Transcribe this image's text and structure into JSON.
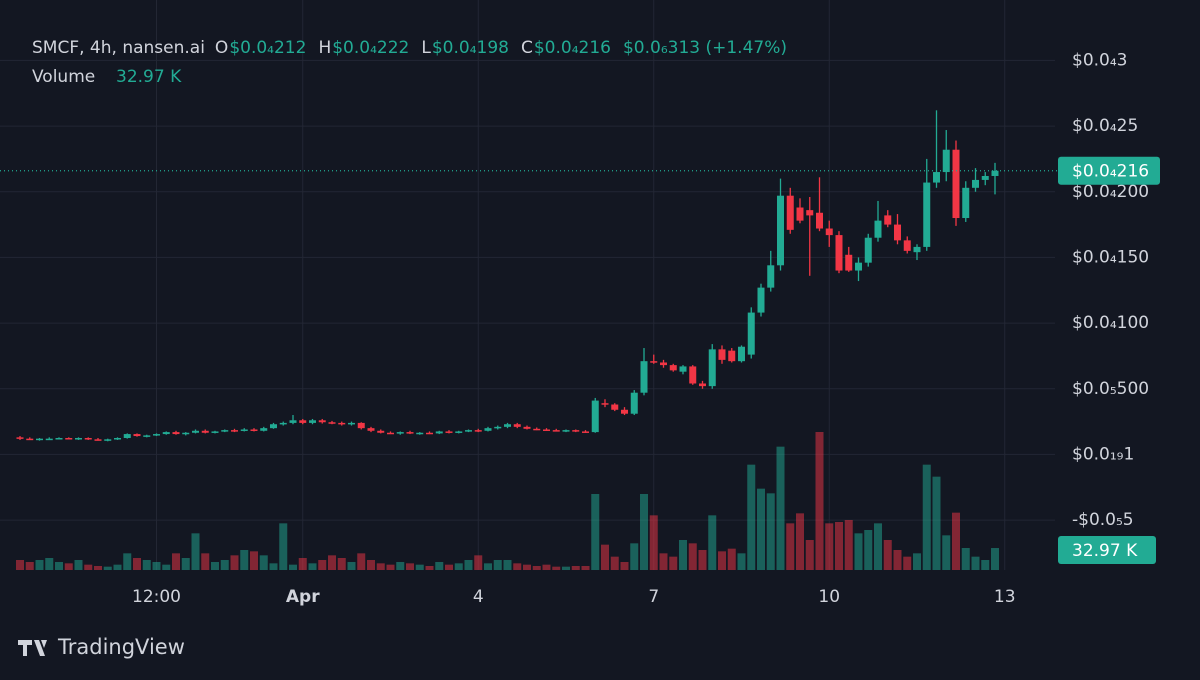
{
  "chart_data": {
    "type": "candlestick",
    "title": "SMCF, 4h, nansen.ai",
    "ohlc_legend": [
      {
        "key": "O",
        "value": 2.12e-05,
        "label": "$0.0₄212"
      },
      {
        "key": "H",
        "value": 2.22e-05,
        "label": "$0.0₄222"
      },
      {
        "key": "L",
        "value": 1.98e-05,
        "label": "$0.0₄198"
      },
      {
        "key": "C",
        "value": 2.16e-05,
        "label": "$0.0₄216"
      }
    ],
    "change": {
      "value": 3.13e-07,
      "label": "$0.0₆313 (+1.47%)"
    },
    "volume_legend": {
      "name": "Volume",
      "value": 32.97,
      "label": "32.97 K"
    },
    "last_price": {
      "value": 2.16e-05,
      "label": "$0.0₄216"
    },
    "up_color": "#22ab94",
    "down_color": "#f23645",
    "grid": true,
    "categories": [
      null,
      null,
      null,
      null,
      null,
      null,
      null,
      null,
      null,
      null,
      null,
      null,
      null,
      null,
      "12:00",
      null,
      null,
      null,
      null,
      null,
      null,
      null,
      null,
      null,
      null,
      null,
      null,
      null,
      null,
      "Apr",
      null,
      null,
      null,
      null,
      null,
      null,
      null,
      null,
      null,
      null,
      null,
      null,
      null,
      null,
      null,
      null,
      null,
      "4",
      null,
      null,
      null,
      null,
      null,
      null,
      null,
      null,
      null,
      null,
      null,
      null,
      null,
      null,
      null,
      null,
      null,
      "7",
      null,
      null,
      null,
      null,
      null,
      null,
      null,
      null,
      null,
      null,
      null,
      null,
      null,
      null,
      null,
      null,
      null,
      "10",
      null,
      null,
      null,
      null,
      null,
      null,
      null,
      null,
      null,
      null,
      null,
      null,
      null,
      null,
      null,
      null,
      null,
      "13"
    ],
    "open": [
      1.3e-06,
      1.2e-06,
      1.1e-06,
      1.2e-06,
      1.2e-06,
      1.25e-06,
      1.2e-06,
      1.25e-06,
      1.15e-06,
      1.1e-06,
      1.15e-06,
      1.25e-06,
      1.55e-06,
      1.4e-06,
      1.45e-06,
      1.55e-06,
      1.7e-06,
      1.55e-06,
      1.65e-06,
      1.8e-06,
      1.65e-06,
      1.75e-06,
      1.85e-06,
      1.8e-06,
      1.9e-06,
      1.8e-06,
      2e-06,
      2.3e-06,
      2.4e-06,
      2.6e-06,
      2.4e-06,
      2.6e-06,
      2.45e-06,
      2.4e-06,
      2.3e-06,
      2.4e-06,
      2e-06,
      1.8e-06,
      1.65e-06,
      1.6e-06,
      1.7e-06,
      1.6e-06,
      1.65e-06,
      1.6e-06,
      1.75e-06,
      1.7e-06,
      1.75e-06,
      1.85e-06,
      1.8e-06,
      2e-06,
      2.1e-06,
      2.3e-06,
      2.1e-06,
      1.95e-06,
      1.9e-06,
      1.85e-06,
      1.8e-06,
      1.85e-06,
      1.75e-06,
      1.7e-06,
      3.9e-06,
      3.8e-06,
      3.4e-06,
      3.1e-06,
      4.7e-06,
      7.1e-06,
      7e-06,
      6.8e-06,
      6.3e-06,
      6.7e-06,
      5.4e-06,
      5.2e-06,
      8e-06,
      7.9e-06,
      7.1e-06,
      7.6e-06,
      1.08e-05,
      1.27e-05,
      1.44e-05,
      1.97e-05,
      1.88e-05,
      1.86e-05,
      1.84e-05,
      1.72e-05,
      1.67e-05,
      1.52e-05,
      1.4e-05,
      1.46e-05,
      1.65e-05,
      1.82e-05,
      1.75e-05,
      1.63e-05,
      1.54e-05,
      1.58e-05,
      2.07e-05,
      2.15e-05,
      2.32e-05,
      1.8e-05,
      2.03e-05,
      2.09e-05,
      2.12e-05,
      null
    ],
    "high": [
      1.4e-06,
      1.3e-06,
      1.25e-06,
      1.3e-06,
      1.3e-06,
      1.3e-06,
      1.3e-06,
      1.3e-06,
      1.25e-06,
      1.2e-06,
      1.3e-06,
      1.6e-06,
      1.6e-06,
      1.5e-06,
      1.6e-06,
      1.75e-06,
      1.8e-06,
      1.7e-06,
      1.9e-06,
      1.9e-06,
      1.8e-06,
      1.9e-06,
      1.95e-06,
      2e-06,
      2e-06,
      2.1e-06,
      2.4e-06,
      2.5e-06,
      3e-06,
      2.7e-06,
      2.7e-06,
      2.7e-06,
      2.55e-06,
      2.5e-06,
      2.5e-06,
      2.45e-06,
      2.1e-06,
      1.9e-06,
      1.75e-06,
      1.75e-06,
      1.8e-06,
      1.7e-06,
      1.75e-06,
      1.8e-06,
      1.85e-06,
      1.8e-06,
      1.9e-06,
      1.95e-06,
      2.1e-06,
      2.2e-06,
      2.4e-06,
      2.4e-06,
      2.2e-06,
      2.05e-06,
      2e-06,
      1.95e-06,
      1.9e-06,
      1.9e-06,
      1.85e-06,
      4.3e-06,
      4.2e-06,
      3.9e-06,
      3.6e-06,
      4.9e-06,
      8.1e-06,
      7.6e-06,
      7.2e-06,
      6.9e-06,
      6.8e-06,
      6.8e-06,
      5.6e-06,
      8.4e-06,
      8.3e-06,
      8.1e-06,
      8.3e-06,
      1.12e-05,
      1.3e-05,
      1.55e-05,
      2.1e-05,
      2.03e-05,
      1.95e-05,
      1.96e-05,
      2.11e-05,
      1.78e-05,
      1.7e-05,
      1.58e-05,
      1.5e-05,
      1.68e-05,
      1.93e-05,
      1.86e-05,
      1.83e-05,
      1.66e-05,
      1.6e-05,
      2.25e-05,
      2.62e-05,
      2.47e-05,
      2.39e-05,
      2.08e-05,
      2.18e-05,
      2.15e-05,
      2.22e-05,
      null
    ],
    "low": [
      1.1e-06,
      1.1e-06,
      1.05e-06,
      1.1e-06,
      1.15e-06,
      1.15e-06,
      1.1e-06,
      1.1e-06,
      1.05e-06,
      1e-06,
      1.1e-06,
      1.2e-06,
      1.35e-06,
      1.3e-06,
      1.4e-06,
      1.5e-06,
      1.5e-06,
      1.45e-06,
      1.6e-06,
      1.6e-06,
      1.6e-06,
      1.7e-06,
      1.7e-06,
      1.75e-06,
      1.75e-06,
      1.75e-06,
      1.95e-06,
      2.2e-06,
      2.3e-06,
      2.3e-06,
      2.3e-06,
      2.35e-06,
      2.3e-06,
      2.2e-06,
      2.2e-06,
      1.9e-06,
      1.7e-06,
      1.6e-06,
      1.55e-06,
      1.5e-06,
      1.55e-06,
      1.5e-06,
      1.55e-06,
      1.55e-06,
      1.6e-06,
      1.6e-06,
      1.7e-06,
      1.7e-06,
      1.75e-06,
      1.9e-06,
      2e-06,
      2e-06,
      1.9e-06,
      1.85e-06,
      1.8e-06,
      1.75e-06,
      1.7e-06,
      1.7e-06,
      1.65e-06,
      1.65e-06,
      3.6e-06,
      3.3e-06,
      3e-06,
      3e-06,
      4.5e-06,
      6.9e-06,
      6.6e-06,
      6.3e-06,
      6.1e-06,
      5.3e-06,
      5e-06,
      5e-06,
      6.9e-06,
      7e-06,
      7e-06,
      7.3e-06,
      1.05e-05,
      1.24e-05,
      1.4e-05,
      1.68e-05,
      1.76e-05,
      1.36e-05,
      1.7e-05,
      1.58e-05,
      1.38e-05,
      1.39e-05,
      1.32e-05,
      1.43e-05,
      1.62e-05,
      1.73e-05,
      1.6e-05,
      1.53e-05,
      1.48e-05,
      1.55e-05,
      2.03e-05,
      2.08e-05,
      1.74e-05,
      1.77e-05,
      2e-05,
      2.05e-05,
      1.98e-05,
      null
    ],
    "close": [
      1.2e-06,
      1.1e-06,
      1.2e-06,
      1.2e-06,
      1.25e-06,
      1.2e-06,
      1.25e-06,
      1.15e-06,
      1.1e-06,
      1.15e-06,
      1.25e-06,
      1.55e-06,
      1.4e-06,
      1.45e-06,
      1.55e-06,
      1.7e-06,
      1.55e-06,
      1.65e-06,
      1.8e-06,
      1.65e-06,
      1.75e-06,
      1.85e-06,
      1.8e-06,
      1.9e-06,
      1.8e-06,
      2e-06,
      2.3e-06,
      2.4e-06,
      2.6e-06,
      2.4e-06,
      2.6e-06,
      2.45e-06,
      2.4e-06,
      2.3e-06,
      2.4e-06,
      2e-06,
      1.8e-06,
      1.65e-06,
      1.6e-06,
      1.7e-06,
      1.6e-06,
      1.65e-06,
      1.6e-06,
      1.75e-06,
      1.7e-06,
      1.75e-06,
      1.85e-06,
      1.8e-06,
      2e-06,
      2.1e-06,
      2.3e-06,
      2.1e-06,
      1.95e-06,
      1.9e-06,
      1.85e-06,
      1.8e-06,
      1.85e-06,
      1.75e-06,
      1.7e-06,
      4.1e-06,
      3.8e-06,
      3.4e-06,
      3.1e-06,
      4.7e-06,
      7.1e-06,
      7e-06,
      6.8e-06,
      6.4e-06,
      6.7e-06,
      5.4e-06,
      5.2e-06,
      8e-06,
      7.2e-06,
      7.1e-06,
      8.2e-06,
      1.08e-05,
      1.27e-05,
      1.44e-05,
      1.97e-05,
      1.71e-05,
      1.78e-05,
      1.82e-05,
      1.72e-05,
      1.67e-05,
      1.4e-05,
      1.4e-05,
      1.46e-05,
      1.65e-05,
      1.78e-05,
      1.75e-05,
      1.63e-05,
      1.55e-05,
      1.58e-05,
      2.07e-05,
      2.15e-05,
      2.32e-05,
      1.8e-05,
      2.03e-05,
      2.09e-05,
      2.12e-05,
      2.16e-05,
      null
    ],
    "volume": [
      15,
      12,
      15,
      18,
      12,
      10,
      15,
      8,
      6,
      5,
      8,
      25,
      18,
      15,
      12,
      8,
      25,
      18,
      55,
      25,
      12,
      15,
      22,
      30,
      28,
      22,
      10,
      70,
      8,
      18,
      10,
      15,
      22,
      18,
      12,
      25,
      15,
      10,
      8,
      12,
      10,
      8,
      6,
      12,
      8,
      10,
      15,
      22,
      10,
      15,
      15,
      10,
      8,
      6,
      8,
      5,
      5,
      6,
      6,
      114,
      38,
      20,
      12,
      40,
      114,
      82,
      25,
      20,
      45,
      40,
      30,
      82,
      28,
      32,
      25,
      158,
      122,
      115,
      185,
      70,
      85,
      45,
      207,
      70,
      72,
      75,
      55,
      60,
      70,
      45,
      30,
      20,
      25,
      158,
      140,
      52,
      86,
      33,
      20,
      15,
      32.97,
      null
    ],
    "volume_ylim": [
      0,
      207
    ],
    "ylim": [
      -8.8e-06,
      3.46e-05
    ],
    "yticks": [
      {
        "value": 3e-05,
        "label": "$0.0₄3"
      },
      {
        "value": 2.5e-05,
        "label": "$0.0₄25"
      },
      {
        "value": 2e-05,
        "label": "$0.0₄200"
      },
      {
        "value": 1.5e-05,
        "label": "$0.0₄150"
      },
      {
        "value": 1e-05,
        "label": "$0.0₄100"
      },
      {
        "value": 5e-06,
        "label": "$0.0₅500"
      },
      {
        "value": 1e-20,
        "label": "$0.0₁₉1"
      },
      {
        "value": -5e-06,
        "label": "-$0.0₅5"
      }
    ]
  },
  "brand": "TradingView"
}
